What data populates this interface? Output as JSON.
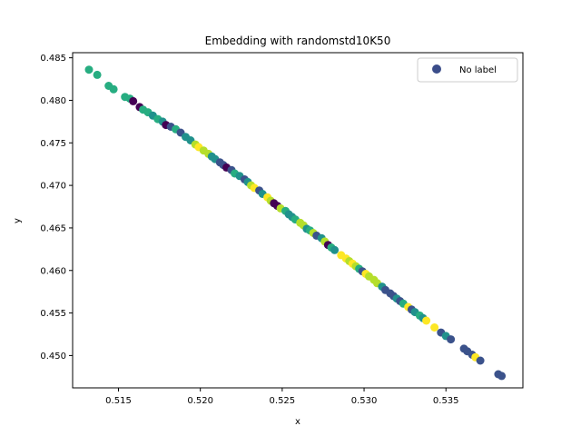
{
  "chart_data": {
    "type": "scatter",
    "title": "Embedding with randomstd10K50",
    "xlabel": "x",
    "ylabel": "y",
    "xlim": [
      0.5122,
      0.5397
    ],
    "ylim": [
      0.4462,
      0.4856
    ],
    "xticks": [
      "0.515",
      "0.520",
      "0.525",
      "0.530",
      "0.535"
    ],
    "yticks": [
      "0.450",
      "0.455",
      "0.460",
      "0.465",
      "0.470",
      "0.475",
      "0.480",
      "0.485"
    ],
    "xtick_values": [
      0.515,
      0.52,
      0.525,
      0.53,
      0.535
    ],
    "ytick_values": [
      0.45,
      0.455,
      0.46,
      0.465,
      0.47,
      0.475,
      0.48,
      0.485
    ],
    "grid": false,
    "legend": {
      "placement": "top-right",
      "entries": [
        {
          "label": "No label",
          "color": "#3b4d8a"
        }
      ]
    },
    "colors": {
      "purple": "#440154",
      "darkblue": "#3b528b",
      "teal": "#21918c",
      "green": "#27ad81",
      "lime": "#b5de2b",
      "yellow": "#fde725"
    },
    "points": [
      {
        "x": 0.5132,
        "y": 0.4836,
        "c": "green"
      },
      {
        "x": 0.5137,
        "y": 0.483,
        "c": "green"
      },
      {
        "x": 0.5144,
        "y": 0.4817,
        "c": "green"
      },
      {
        "x": 0.5147,
        "y": 0.4813,
        "c": "green"
      },
      {
        "x": 0.5154,
        "y": 0.4804,
        "c": "green"
      },
      {
        "x": 0.5157,
        "y": 0.4802,
        "c": "green"
      },
      {
        "x": 0.5159,
        "y": 0.4799,
        "c": "purple"
      },
      {
        "x": 0.5163,
        "y": 0.4792,
        "c": "purple"
      },
      {
        "x": 0.5165,
        "y": 0.4789,
        "c": "green"
      },
      {
        "x": 0.5168,
        "y": 0.4786,
        "c": "green"
      },
      {
        "x": 0.5171,
        "y": 0.4782,
        "c": "teal"
      },
      {
        "x": 0.5174,
        "y": 0.4778,
        "c": "green"
      },
      {
        "x": 0.5177,
        "y": 0.4775,
        "c": "teal"
      },
      {
        "x": 0.5179,
        "y": 0.4771,
        "c": "purple"
      },
      {
        "x": 0.5182,
        "y": 0.4769,
        "c": "darkblue"
      },
      {
        "x": 0.5185,
        "y": 0.4766,
        "c": "green"
      },
      {
        "x": 0.5188,
        "y": 0.4762,
        "c": "darkblue"
      },
      {
        "x": 0.5191,
        "y": 0.4757,
        "c": "teal"
      },
      {
        "x": 0.5194,
        "y": 0.4753,
        "c": "teal"
      },
      {
        "x": 0.5197,
        "y": 0.4748,
        "c": "lime"
      },
      {
        "x": 0.5199,
        "y": 0.4745,
        "c": "yellow"
      },
      {
        "x": 0.5202,
        "y": 0.4741,
        "c": "lime"
      },
      {
        "x": 0.5205,
        "y": 0.4737,
        "c": "lime"
      },
      {
        "x": 0.5207,
        "y": 0.4734,
        "c": "teal"
      },
      {
        "x": 0.5209,
        "y": 0.4731,
        "c": "teal"
      },
      {
        "x": 0.5212,
        "y": 0.4727,
        "c": "darkblue"
      },
      {
        "x": 0.5214,
        "y": 0.4724,
        "c": "darkblue"
      },
      {
        "x": 0.5216,
        "y": 0.4721,
        "c": "purple"
      },
      {
        "x": 0.5219,
        "y": 0.4718,
        "c": "darkblue"
      },
      {
        "x": 0.5221,
        "y": 0.4714,
        "c": "green"
      },
      {
        "x": 0.5224,
        "y": 0.4711,
        "c": "teal"
      },
      {
        "x": 0.5227,
        "y": 0.4707,
        "c": "darkblue"
      },
      {
        "x": 0.5229,
        "y": 0.4704,
        "c": "teal"
      },
      {
        "x": 0.5231,
        "y": 0.47,
        "c": "lime"
      },
      {
        "x": 0.5233,
        "y": 0.4697,
        "c": "yellow"
      },
      {
        "x": 0.5236,
        "y": 0.4694,
        "c": "darkblue"
      },
      {
        "x": 0.5238,
        "y": 0.469,
        "c": "teal"
      },
      {
        "x": 0.5241,
        "y": 0.4686,
        "c": "yellow"
      },
      {
        "x": 0.5243,
        "y": 0.4682,
        "c": "lime"
      },
      {
        "x": 0.5245,
        "y": 0.4679,
        "c": "purple"
      },
      {
        "x": 0.5247,
        "y": 0.4676,
        "c": "purple"
      },
      {
        "x": 0.5249,
        "y": 0.4673,
        "c": "lime"
      },
      {
        "x": 0.5252,
        "y": 0.467,
        "c": "green"
      },
      {
        "x": 0.5254,
        "y": 0.4666,
        "c": "teal"
      },
      {
        "x": 0.5256,
        "y": 0.4663,
        "c": "teal"
      },
      {
        "x": 0.5258,
        "y": 0.466,
        "c": "green"
      },
      {
        "x": 0.5261,
        "y": 0.4656,
        "c": "lime"
      },
      {
        "x": 0.5263,
        "y": 0.4653,
        "c": "lime"
      },
      {
        "x": 0.5265,
        "y": 0.4649,
        "c": "teal"
      },
      {
        "x": 0.5267,
        "y": 0.4647,
        "c": "green"
      },
      {
        "x": 0.5269,
        "y": 0.4644,
        "c": "lime"
      },
      {
        "x": 0.5271,
        "y": 0.4641,
        "c": "darkblue"
      },
      {
        "x": 0.5274,
        "y": 0.4638,
        "c": "teal"
      },
      {
        "x": 0.5276,
        "y": 0.4634,
        "c": "lime"
      },
      {
        "x": 0.5278,
        "y": 0.463,
        "c": "purple"
      },
      {
        "x": 0.528,
        "y": 0.4627,
        "c": "green"
      },
      {
        "x": 0.5282,
        "y": 0.4624,
        "c": "teal"
      },
      {
        "x": 0.5286,
        "y": 0.4618,
        "c": "yellow"
      },
      {
        "x": 0.5289,
        "y": 0.4614,
        "c": "yellow"
      },
      {
        "x": 0.5291,
        "y": 0.4611,
        "c": "lime"
      },
      {
        "x": 0.5293,
        "y": 0.4608,
        "c": "yellow"
      },
      {
        "x": 0.5295,
        "y": 0.4605,
        "c": "lime"
      },
      {
        "x": 0.5297,
        "y": 0.4602,
        "c": "green"
      },
      {
        "x": 0.5299,
        "y": 0.4599,
        "c": "darkblue"
      },
      {
        "x": 0.5301,
        "y": 0.4596,
        "c": "yellow"
      },
      {
        "x": 0.5303,
        "y": 0.4593,
        "c": "lime"
      },
      {
        "x": 0.5306,
        "y": 0.4589,
        "c": "lime"
      },
      {
        "x": 0.5308,
        "y": 0.4585,
        "c": "lime"
      },
      {
        "x": 0.5311,
        "y": 0.4581,
        "c": "teal"
      },
      {
        "x": 0.5313,
        "y": 0.4577,
        "c": "darkblue"
      },
      {
        "x": 0.5316,
        "y": 0.4573,
        "c": "darkblue"
      },
      {
        "x": 0.5318,
        "y": 0.457,
        "c": "darkblue"
      },
      {
        "x": 0.532,
        "y": 0.4567,
        "c": "teal"
      },
      {
        "x": 0.5322,
        "y": 0.4564,
        "c": "darkblue"
      },
      {
        "x": 0.5324,
        "y": 0.4561,
        "c": "green"
      },
      {
        "x": 0.5327,
        "y": 0.4557,
        "c": "yellow"
      },
      {
        "x": 0.5329,
        "y": 0.4554,
        "c": "darkblue"
      },
      {
        "x": 0.5331,
        "y": 0.4551,
        "c": "teal"
      },
      {
        "x": 0.5334,
        "y": 0.4547,
        "c": "green"
      },
      {
        "x": 0.5336,
        "y": 0.4544,
        "c": "teal"
      },
      {
        "x": 0.5338,
        "y": 0.4541,
        "c": "yellow"
      },
      {
        "x": 0.5343,
        "y": 0.4533,
        "c": "yellow"
      },
      {
        "x": 0.5347,
        "y": 0.4527,
        "c": "darkblue"
      },
      {
        "x": 0.535,
        "y": 0.4523,
        "c": "teal"
      },
      {
        "x": 0.5353,
        "y": 0.4519,
        "c": "darkblue"
      },
      {
        "x": 0.5361,
        "y": 0.4508,
        "c": "darkblue"
      },
      {
        "x": 0.5363,
        "y": 0.4505,
        "c": "darkblue"
      },
      {
        "x": 0.5366,
        "y": 0.4501,
        "c": "darkblue"
      },
      {
        "x": 0.5368,
        "y": 0.4498,
        "c": "yellow"
      },
      {
        "x": 0.5371,
        "y": 0.4494,
        "c": "darkblue"
      },
      {
        "x": 0.5382,
        "y": 0.4478,
        "c": "darkblue"
      },
      {
        "x": 0.5384,
        "y": 0.4476,
        "c": "darkblue"
      }
    ]
  }
}
